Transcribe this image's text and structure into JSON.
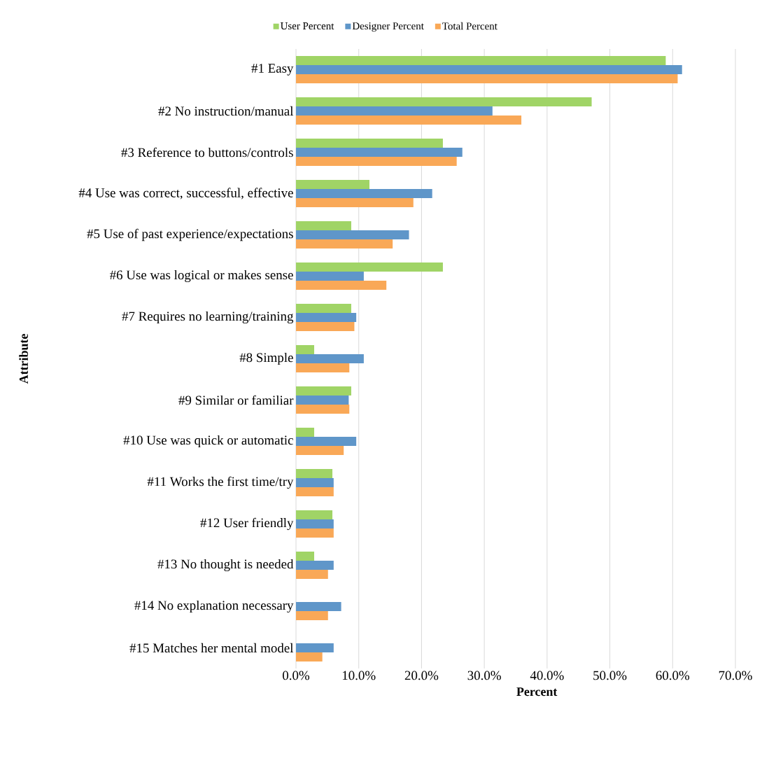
{
  "chart_data": {
    "type": "bar",
    "orientation": "horizontal",
    "xlabel": "Percent",
    "ylabel": "Attribute",
    "categories": [
      "#1 Easy",
      "#2 No instruction/manual",
      "#3 Reference to buttons/controls",
      "#4 Use was correct, successful, effective",
      "#5 Use of past experience/expectations",
      "#6 Use was logical or makes sense",
      "#7 Requires no learning/training",
      "#8 Simple",
      "#9 Similar or familiar",
      "#10 Use was quick or automatic",
      "#11 Works the first time/try",
      "#12 User friendly",
      "#13 No thought is needed",
      "#14 No explanation necessary",
      "#15 Matches her mental model"
    ],
    "series": [
      {
        "name": "User Percent",
        "color": "#a0d466",
        "values": [
          58.9,
          47.1,
          23.4,
          11.7,
          8.8,
          23.4,
          8.8,
          2.9,
          8.8,
          2.9,
          5.8,
          5.8,
          2.9,
          0,
          0
        ]
      },
      {
        "name": "Designer Percent",
        "color": "#5f96c9",
        "values": [
          61.5,
          31.3,
          26.5,
          21.7,
          18.0,
          10.8,
          9.6,
          10.8,
          8.4,
          9.6,
          6.0,
          6.0,
          6.0,
          7.2,
          6.0
        ]
      },
      {
        "name": "Total Percent",
        "color": "#f9a857",
        "values": [
          60.8,
          35.9,
          25.6,
          18.7,
          15.4,
          14.4,
          9.3,
          8.5,
          8.5,
          7.6,
          6.0,
          6.0,
          5.1,
          5.1,
          4.2
        ]
      }
    ],
    "xlim": [
      0,
      70
    ],
    "xticks": [
      {
        "value": 0,
        "label": "0.0%"
      },
      {
        "value": 10,
        "label": "10.0%"
      },
      {
        "value": 20,
        "label": "20.0%"
      },
      {
        "value": 30,
        "label": "30.0%"
      },
      {
        "value": 40,
        "label": "40.0%"
      },
      {
        "value": 50,
        "label": "50.0%"
      },
      {
        "value": 60,
        "label": "60.0%"
      },
      {
        "value": 70,
        "label": "70.0%"
      }
    ],
    "grid": "x",
    "legend": "top"
  }
}
